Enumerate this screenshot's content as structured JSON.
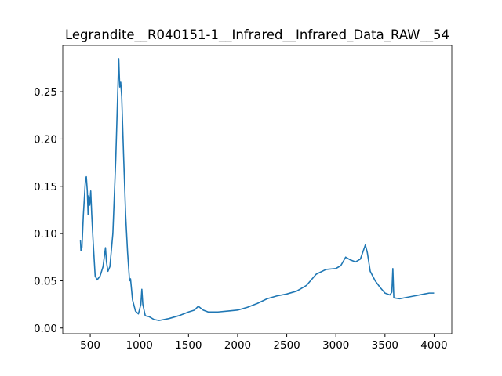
{
  "chart_data": {
    "type": "line",
    "title": "Legrandite__R040151-1__Infrared__Infrared_Data_RAW__54",
    "x": [
      400,
      405,
      415,
      430,
      450,
      460,
      470,
      478,
      485,
      495,
      505,
      515,
      530,
      550,
      570,
      600,
      630,
      655,
      665,
      680,
      700,
      730,
      760,
      780,
      790,
      800,
      810,
      820,
      840,
      860,
      880,
      900,
      910,
      930,
      960,
      990,
      1015,
      1025,
      1035,
      1060,
      1100,
      1150,
      1200,
      1300,
      1400,
      1500,
      1560,
      1600,
      1650,
      1700,
      1800,
      1900,
      2000,
      2100,
      2200,
      2300,
      2400,
      2500,
      2600,
      2700,
      2800,
      2900,
      3000,
      3050,
      3100,
      3150,
      3200,
      3250,
      3300,
      3320,
      3350,
      3400,
      3450,
      3500,
      3550,
      3570,
      3580,
      3590,
      3650,
      3700,
      3800,
      3900,
      3950,
      4000
    ],
    "series": [
      {
        "color": "#1f77b4",
        "values": [
          0.093,
          0.082,
          0.085,
          0.12,
          0.155,
          0.16,
          0.145,
          0.12,
          0.14,
          0.13,
          0.145,
          0.12,
          0.09,
          0.055,
          0.051,
          0.055,
          0.065,
          0.085,
          0.07,
          0.06,
          0.065,
          0.1,
          0.18,
          0.25,
          0.285,
          0.255,
          0.26,
          0.245,
          0.18,
          0.12,
          0.08,
          0.05,
          0.052,
          0.03,
          0.018,
          0.015,
          0.025,
          0.041,
          0.025,
          0.013,
          0.012,
          0.009,
          0.008,
          0.01,
          0.013,
          0.017,
          0.019,
          0.023,
          0.019,
          0.017,
          0.017,
          0.018,
          0.019,
          0.022,
          0.026,
          0.031,
          0.034,
          0.036,
          0.039,
          0.045,
          0.057,
          0.062,
          0.063,
          0.066,
          0.075,
          0.072,
          0.07,
          0.073,
          0.088,
          0.08,
          0.06,
          0.05,
          0.043,
          0.037,
          0.035,
          0.038,
          0.063,
          0.032,
          0.031,
          0.032,
          0.034,
          0.036,
          0.037,
          0.037
        ]
      }
    ],
    "xlim": [
      220,
      4180
    ],
    "ylim": [
      -0.006,
      0.299
    ],
    "xticks": [
      500,
      1000,
      1500,
      2000,
      2500,
      3000,
      3500,
      4000
    ],
    "yticks": [
      {
        "value": 0,
        "label": "0.00"
      },
      {
        "value": 0.05,
        "label": "0.05"
      },
      {
        "value": 0.1,
        "label": "0.10"
      },
      {
        "value": 0.15,
        "label": "0.15"
      },
      {
        "value": 0.2,
        "label": "0.20"
      },
      {
        "value": 0.25,
        "label": "0.25"
      }
    ],
    "grid": false
  }
}
